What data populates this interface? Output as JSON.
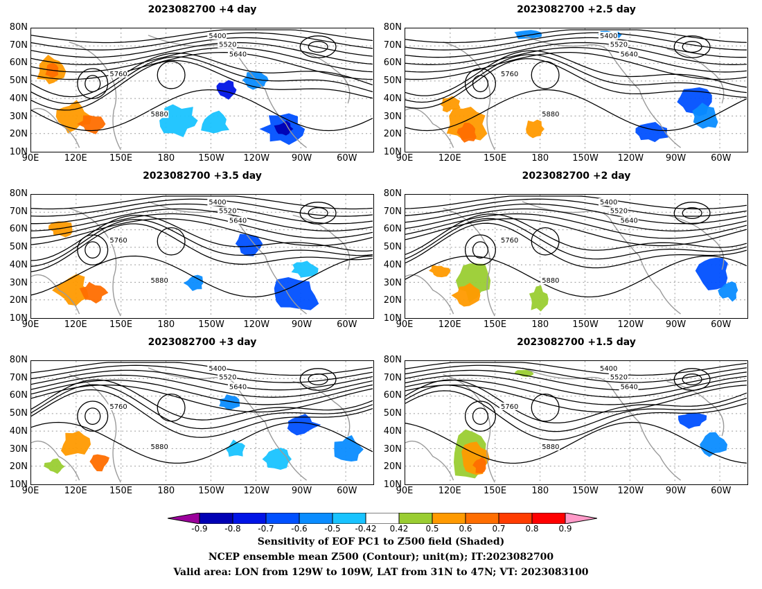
{
  "panels": [
    {
      "title": "2023082700 +4 day"
    },
    {
      "title": "2023082700 +2.5 day"
    },
    {
      "title": "2023082700 +3.5 day"
    },
    {
      "title": "2023082700 +2 day"
    },
    {
      "title": "2023082700 +3 day"
    },
    {
      "title": "2023082700 +1.5 day"
    }
  ],
  "lat_labels": [
    "80N",
    "70N",
    "60N",
    "50N",
    "40N",
    "30N",
    "20N",
    "10N"
  ],
  "lon_labels": [
    "90E",
    "120E",
    "150E",
    "180",
    "150W",
    "120W",
    "90W",
    "60W"
  ],
  "contour_labels": [
    "5400",
    "5520",
    "5640",
    "5760",
    "5880"
  ],
  "colorbar": {
    "ticks": [
      "-0.9",
      "-0.8",
      "-0.7",
      "-0.6",
      "-0.5",
      "-0.42",
      "0.42",
      "0.5",
      "0.6",
      "0.7",
      "0.8",
      "0.9"
    ],
    "colors": [
      "#9b009b",
      "#0000b4",
      "#0014e6",
      "#0050ff",
      "#0a8cff",
      "#19c3ff",
      "#ffffff",
      "#9acd32",
      "#ff9a00",
      "#ff6e00",
      "#ff3c00",
      "#ff0000",
      "#ff9ac8"
    ]
  },
  "caption": {
    "line1": "Sensitivity of EOF PC1 to Z500 field (Shaded)",
    "line2": "NCEP ensemble mean Z500 (Contour); unit(m); IT:2023082700",
    "line3": "Valid area: LON from 129W to 109W, LAT from 31N to 47N; VT: 2023083100"
  }
}
